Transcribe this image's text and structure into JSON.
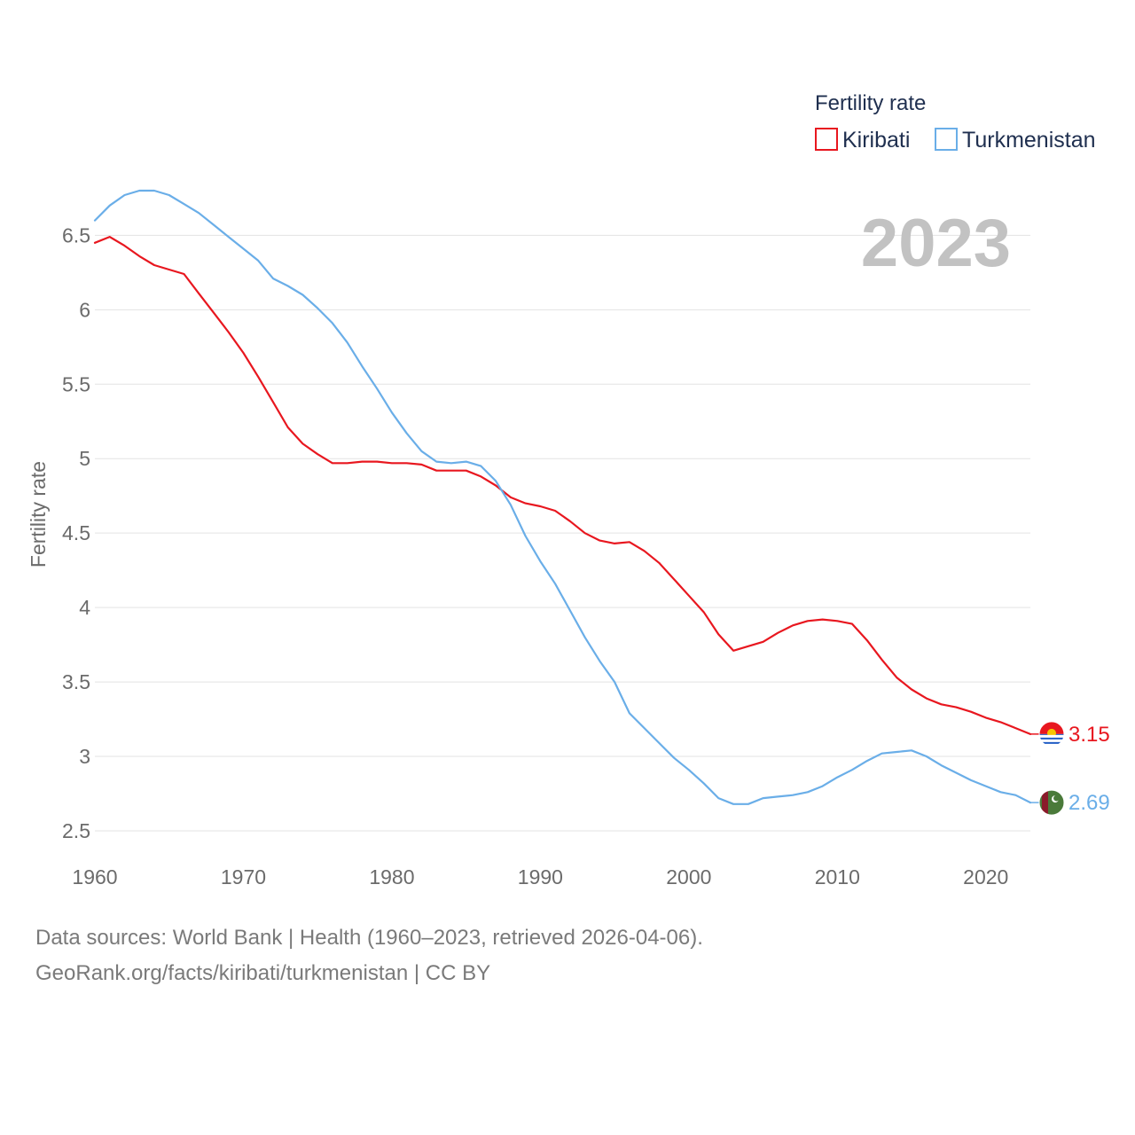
{
  "chart_data": {
    "type": "line",
    "title": "",
    "legend_title": "Fertility rate",
    "legend_position": "top-right",
    "year_label": "2023",
    "xlabel": "",
    "ylabel": "Fertility rate",
    "xlim": [
      1960,
      2023
    ],
    "ylim": [
      2.5,
      6.8
    ],
    "x_ticks": [
      1960,
      1970,
      1980,
      1990,
      2000,
      2010,
      2020
    ],
    "x_tick_labels": [
      "1960",
      "1970",
      "1980",
      "1990",
      "2000",
      "2010",
      "2020"
    ],
    "y_ticks": [
      2.5,
      3,
      3.5,
      4,
      4.5,
      5,
      5.5,
      6,
      6.5
    ],
    "y_tick_labels": [
      "2.5",
      "3",
      "3.5",
      "4",
      "4.5",
      "5",
      "5.5",
      "6",
      "6.5"
    ],
    "grid": true,
    "x": [
      1960,
      1961,
      1962,
      1963,
      1964,
      1965,
      1966,
      1967,
      1968,
      1969,
      1970,
      1971,
      1972,
      1973,
      1974,
      1975,
      1976,
      1977,
      1978,
      1979,
      1980,
      1981,
      1982,
      1983,
      1984,
      1985,
      1986,
      1987,
      1988,
      1989,
      1990,
      1991,
      1992,
      1993,
      1994,
      1995,
      1996,
      1997,
      1998,
      1999,
      2000,
      2001,
      2002,
      2003,
      2004,
      2005,
      2006,
      2007,
      2008,
      2009,
      2010,
      2011,
      2012,
      2013,
      2014,
      2015,
      2016,
      2017,
      2018,
      2019,
      2020,
      2021,
      2022,
      2023
    ],
    "series": [
      {
        "name": "Kiribati",
        "color": "#e8171f",
        "end_label": "3.15",
        "flag_icon": "kiribati-flag-icon",
        "values": [
          6.45,
          6.49,
          6.43,
          6.36,
          6.3,
          6.27,
          6.24,
          6.11,
          5.98,
          5.85,
          5.71,
          5.55,
          5.38,
          5.21,
          5.1,
          5.03,
          4.97,
          4.97,
          4.98,
          4.98,
          4.97,
          4.97,
          4.96,
          4.92,
          4.92,
          4.92,
          4.88,
          4.82,
          4.74,
          4.7,
          4.68,
          4.65,
          4.58,
          4.5,
          4.45,
          4.43,
          4.44,
          4.38,
          4.3,
          4.19,
          4.08,
          3.97,
          3.82,
          3.71,
          3.74,
          3.77,
          3.83,
          3.88,
          3.91,
          3.92,
          3.91,
          3.89,
          3.78,
          3.65,
          3.53,
          3.45,
          3.39,
          3.35,
          3.33,
          3.3,
          3.26,
          3.23,
          3.19,
          3.15
        ]
      },
      {
        "name": "Turkmenistan",
        "color": "#6aaee8",
        "end_label": "2.69",
        "flag_icon": "turkmenistan-flag-icon",
        "values": [
          6.6,
          6.7,
          6.77,
          6.8,
          6.8,
          6.77,
          6.71,
          6.65,
          6.57,
          6.49,
          6.41,
          6.33,
          6.21,
          6.16,
          6.1,
          6.01,
          5.91,
          5.78,
          5.62,
          5.47,
          5.31,
          5.17,
          5.05,
          4.98,
          4.97,
          4.98,
          4.95,
          4.85,
          4.69,
          4.48,
          4.31,
          4.16,
          3.98,
          3.8,
          3.64,
          3.5,
          3.29,
          3.19,
          3.09,
          2.99,
          2.91,
          2.82,
          2.72,
          2.68,
          2.68,
          2.72,
          2.73,
          2.74,
          2.76,
          2.8,
          2.86,
          2.91,
          2.97,
          3.02,
          3.03,
          3.04,
          3.0,
          2.94,
          2.89,
          2.84,
          2.8,
          2.76,
          2.74,
          2.69
        ]
      }
    ]
  },
  "footer": {
    "line1": "Data sources: World Bank | Health (1960–2023, retrieved 2026-04-06).",
    "line2": "GeoRank.org/facts/kiribati/turkmenistan | CC BY"
  }
}
